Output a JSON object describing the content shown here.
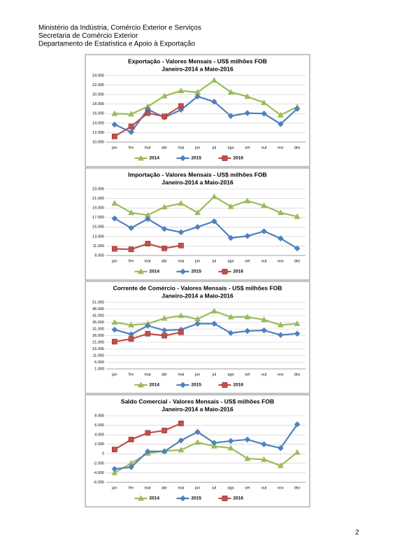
{
  "header": [
    "Ministério da Indústria, Comércio Exterior e Serviços",
    "Secretaria de Comércio Exterior",
    "Departamento de Estatística e Apoio à Exportação"
  ],
  "page_number": "2",
  "chart_data": [
    {
      "type": "line",
      "title": "Exportação - Valores Mensais -  US$ milhões FOB",
      "subtitle": "Janeiro-2014 a Maio-2016",
      "categories": [
        "jan",
        "fev",
        "mar",
        "abr",
        "mai",
        "jun",
        "jul",
        "ago",
        "set",
        "out",
        "nov",
        "dez"
      ],
      "ylim": [
        10000,
        24000
      ],
      "yticks": [
        {
          "value": 10000,
          "label": "10.000"
        },
        {
          "value": 12000,
          "label": "12.000"
        },
        {
          "value": 14000,
          "label": "14.000"
        },
        {
          "value": 16000,
          "label": "16.000"
        },
        {
          "value": 18000,
          "label": "18.000"
        },
        {
          "value": 20000,
          "label": "20.000"
        },
        {
          "value": 22000,
          "label": "22.000"
        },
        {
          "value": 24000,
          "label": "24.000"
        }
      ],
      "grid": true,
      "series": [
        {
          "name": "2014",
          "color": "#9bbb59",
          "marker": "triangle",
          "values": [
            16000,
            15900,
            17500,
            19700,
            20800,
            20500,
            23000,
            20500,
            19600,
            18300,
            15700,
            17400
          ]
        },
        {
          "name": "2015",
          "color": "#4f81bd",
          "marker": "diamond",
          "values": [
            13700,
            12100,
            16900,
            15200,
            16800,
            19600,
            18500,
            15500,
            16100,
            16000,
            13800,
            17000
          ]
        },
        {
          "name": "2016",
          "color": "#c0504d",
          "marker": "square",
          "values": [
            11200,
            13300,
            16100,
            15400,
            17600,
            null,
            null,
            null,
            null,
            null,
            null,
            null
          ]
        }
      ]
    },
    {
      "type": "line",
      "title": "Importação - Valores Mensais -  US$ milhões FOB",
      "subtitle": "Janeiro-2014 a Maio-2016",
      "categories": [
        "jan",
        "fev",
        "mar",
        "abr",
        "mai",
        "jun",
        "jul",
        "ago",
        "set",
        "out",
        "nov",
        "dez"
      ],
      "ylim": [
        9000,
        23000
      ],
      "yticks": [
        {
          "value": 9000,
          "label": "9.000"
        },
        {
          "value": 11000,
          "label": "11.000"
        },
        {
          "value": 13000,
          "label": "13.000"
        },
        {
          "value": 15000,
          "label": "15.000"
        },
        {
          "value": 17000,
          "label": "17.000"
        },
        {
          "value": 19000,
          "label": "19.000"
        },
        {
          "value": 21000,
          "label": "21.000"
        },
        {
          "value": 23000,
          "label": "23.000"
        }
      ],
      "grid": true,
      "series": [
        {
          "name": "2014",
          "color": "#9bbb59",
          "marker": "triangle",
          "values": [
            20000,
            18000,
            17500,
            19200,
            20000,
            18000,
            21400,
            19300,
            20500,
            19500,
            18000,
            17200
          ]
        },
        {
          "name": "2015",
          "color": "#4f81bd",
          "marker": "diamond",
          "values": [
            16800,
            14800,
            16700,
            14600,
            13900,
            15000,
            16200,
            12700,
            13100,
            14100,
            12600,
            10500
          ]
        },
        {
          "name": "2016",
          "color": "#c0504d",
          "marker": "square",
          "values": [
            10400,
            10300,
            11500,
            10500,
            11100,
            null,
            null,
            null,
            null,
            null,
            null,
            null
          ]
        }
      ]
    },
    {
      "type": "line",
      "title": "Corrente de Comércio - Valores Mensais -  US$ milhões FOB",
      "subtitle": "Janeiro-2014 a Maio-2016",
      "categories": [
        "jan",
        "fev",
        "mar",
        "abr",
        "mai",
        "jun",
        "jul",
        "ago",
        "set",
        "out",
        "nov",
        "dez"
      ],
      "ylim": [
        1000,
        51000
      ],
      "yticks": [
        {
          "value": 1000,
          "label": "1.000"
        },
        {
          "value": 6000,
          "label": "6.000"
        },
        {
          "value": 11000,
          "label": "11.000"
        },
        {
          "value": 16000,
          "label": "16.000"
        },
        {
          "value": 21000,
          "label": "21.000"
        },
        {
          "value": 26000,
          "label": "26.000"
        },
        {
          "value": 31000,
          "label": "31.000"
        },
        {
          "value": 36000,
          "label": "36.000"
        },
        {
          "value": 41000,
          "label": "41.000"
        },
        {
          "value": 46000,
          "label": "46.000"
        },
        {
          "value": 51000,
          "label": "51.000"
        }
      ],
      "grid": true,
      "series": [
        {
          "name": "2014",
          "color": "#9bbb59",
          "marker": "triangle",
          "values": [
            36000,
            34000,
            35000,
            39000,
            41000,
            38500,
            44500,
            40000,
            40000,
            38000,
            34000,
            35000
          ]
        },
        {
          "name": "2015",
          "color": "#4f81bd",
          "marker": "diamond",
          "values": [
            30500,
            27000,
            33500,
            30000,
            30500,
            35000,
            35000,
            28000,
            29500,
            30000,
            26500,
            27500
          ]
        },
        {
          "name": "2016",
          "color": "#c0504d",
          "marker": "square",
          "values": [
            21500,
            23500,
            27500,
            26000,
            28500,
            null,
            null,
            null,
            null,
            null,
            null,
            null
          ]
        }
      ]
    },
    {
      "type": "line",
      "title": "Saldo Comercial - Valores Mensais - US$ milhões FOB",
      "subtitle": "Janeiro-2014 a Maio-2016",
      "categories": [
        "jan",
        "fev",
        "mar",
        "abr",
        "mai",
        "jun",
        "jul",
        "ago",
        "set",
        "out",
        "nov",
        "dez"
      ],
      "ylim": [
        -6000,
        8000
      ],
      "yticks": [
        {
          "value": -6000,
          "label": "-6.000"
        },
        {
          "value": -4000,
          "label": "-4.000"
        },
        {
          "value": -2000,
          "label": "-2.000"
        },
        0,
        {
          "value": 2000,
          "label": "2.000"
        },
        {
          "value": 4000,
          "label": "4.000"
        },
        {
          "value": 6000,
          "label": "6.000"
        },
        {
          "value": 8000,
          "label": "8.000"
        }
      ],
      "grid": true,
      "series": [
        {
          "name": "2014",
          "color": "#9bbb59",
          "marker": "triangle",
          "values": [
            -4000,
            -2000,
            100,
            600,
            800,
            2400,
            1600,
            1200,
            -1000,
            -1200,
            -2500,
            300
          ]
        },
        {
          "name": "2015",
          "color": "#4f81bd",
          "marker": "diamond",
          "values": [
            -3200,
            -2800,
            500,
            500,
            2800,
            4600,
            2300,
            2700,
            3000,
            2000,
            1200,
            6200
          ]
        },
        {
          "name": "2016",
          "color": "#c0504d",
          "marker": "square",
          "values": [
            900,
            3000,
            4400,
            4900,
            6400,
            null,
            null,
            null,
            null,
            null,
            null,
            null
          ]
        }
      ]
    }
  ]
}
